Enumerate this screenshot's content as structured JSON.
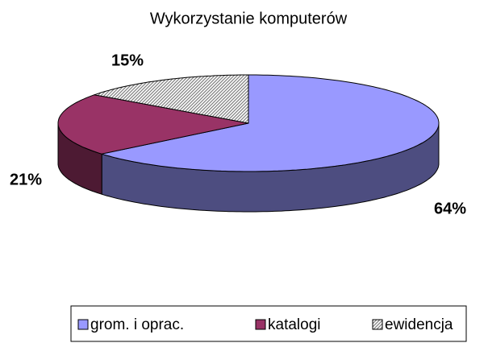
{
  "chart_data": {
    "type": "pie",
    "title": "Wykorzystanie komputerów",
    "categories": [
      "grom. i oprac.",
      "katalogi",
      "ewidencja"
    ],
    "values": [
      64,
      21,
      15
    ],
    "value_labels": [
      "64%",
      "21%",
      "15%"
    ],
    "colors": [
      "#9999ff",
      "#993366",
      "#808080"
    ],
    "legend": "bottom"
  }
}
